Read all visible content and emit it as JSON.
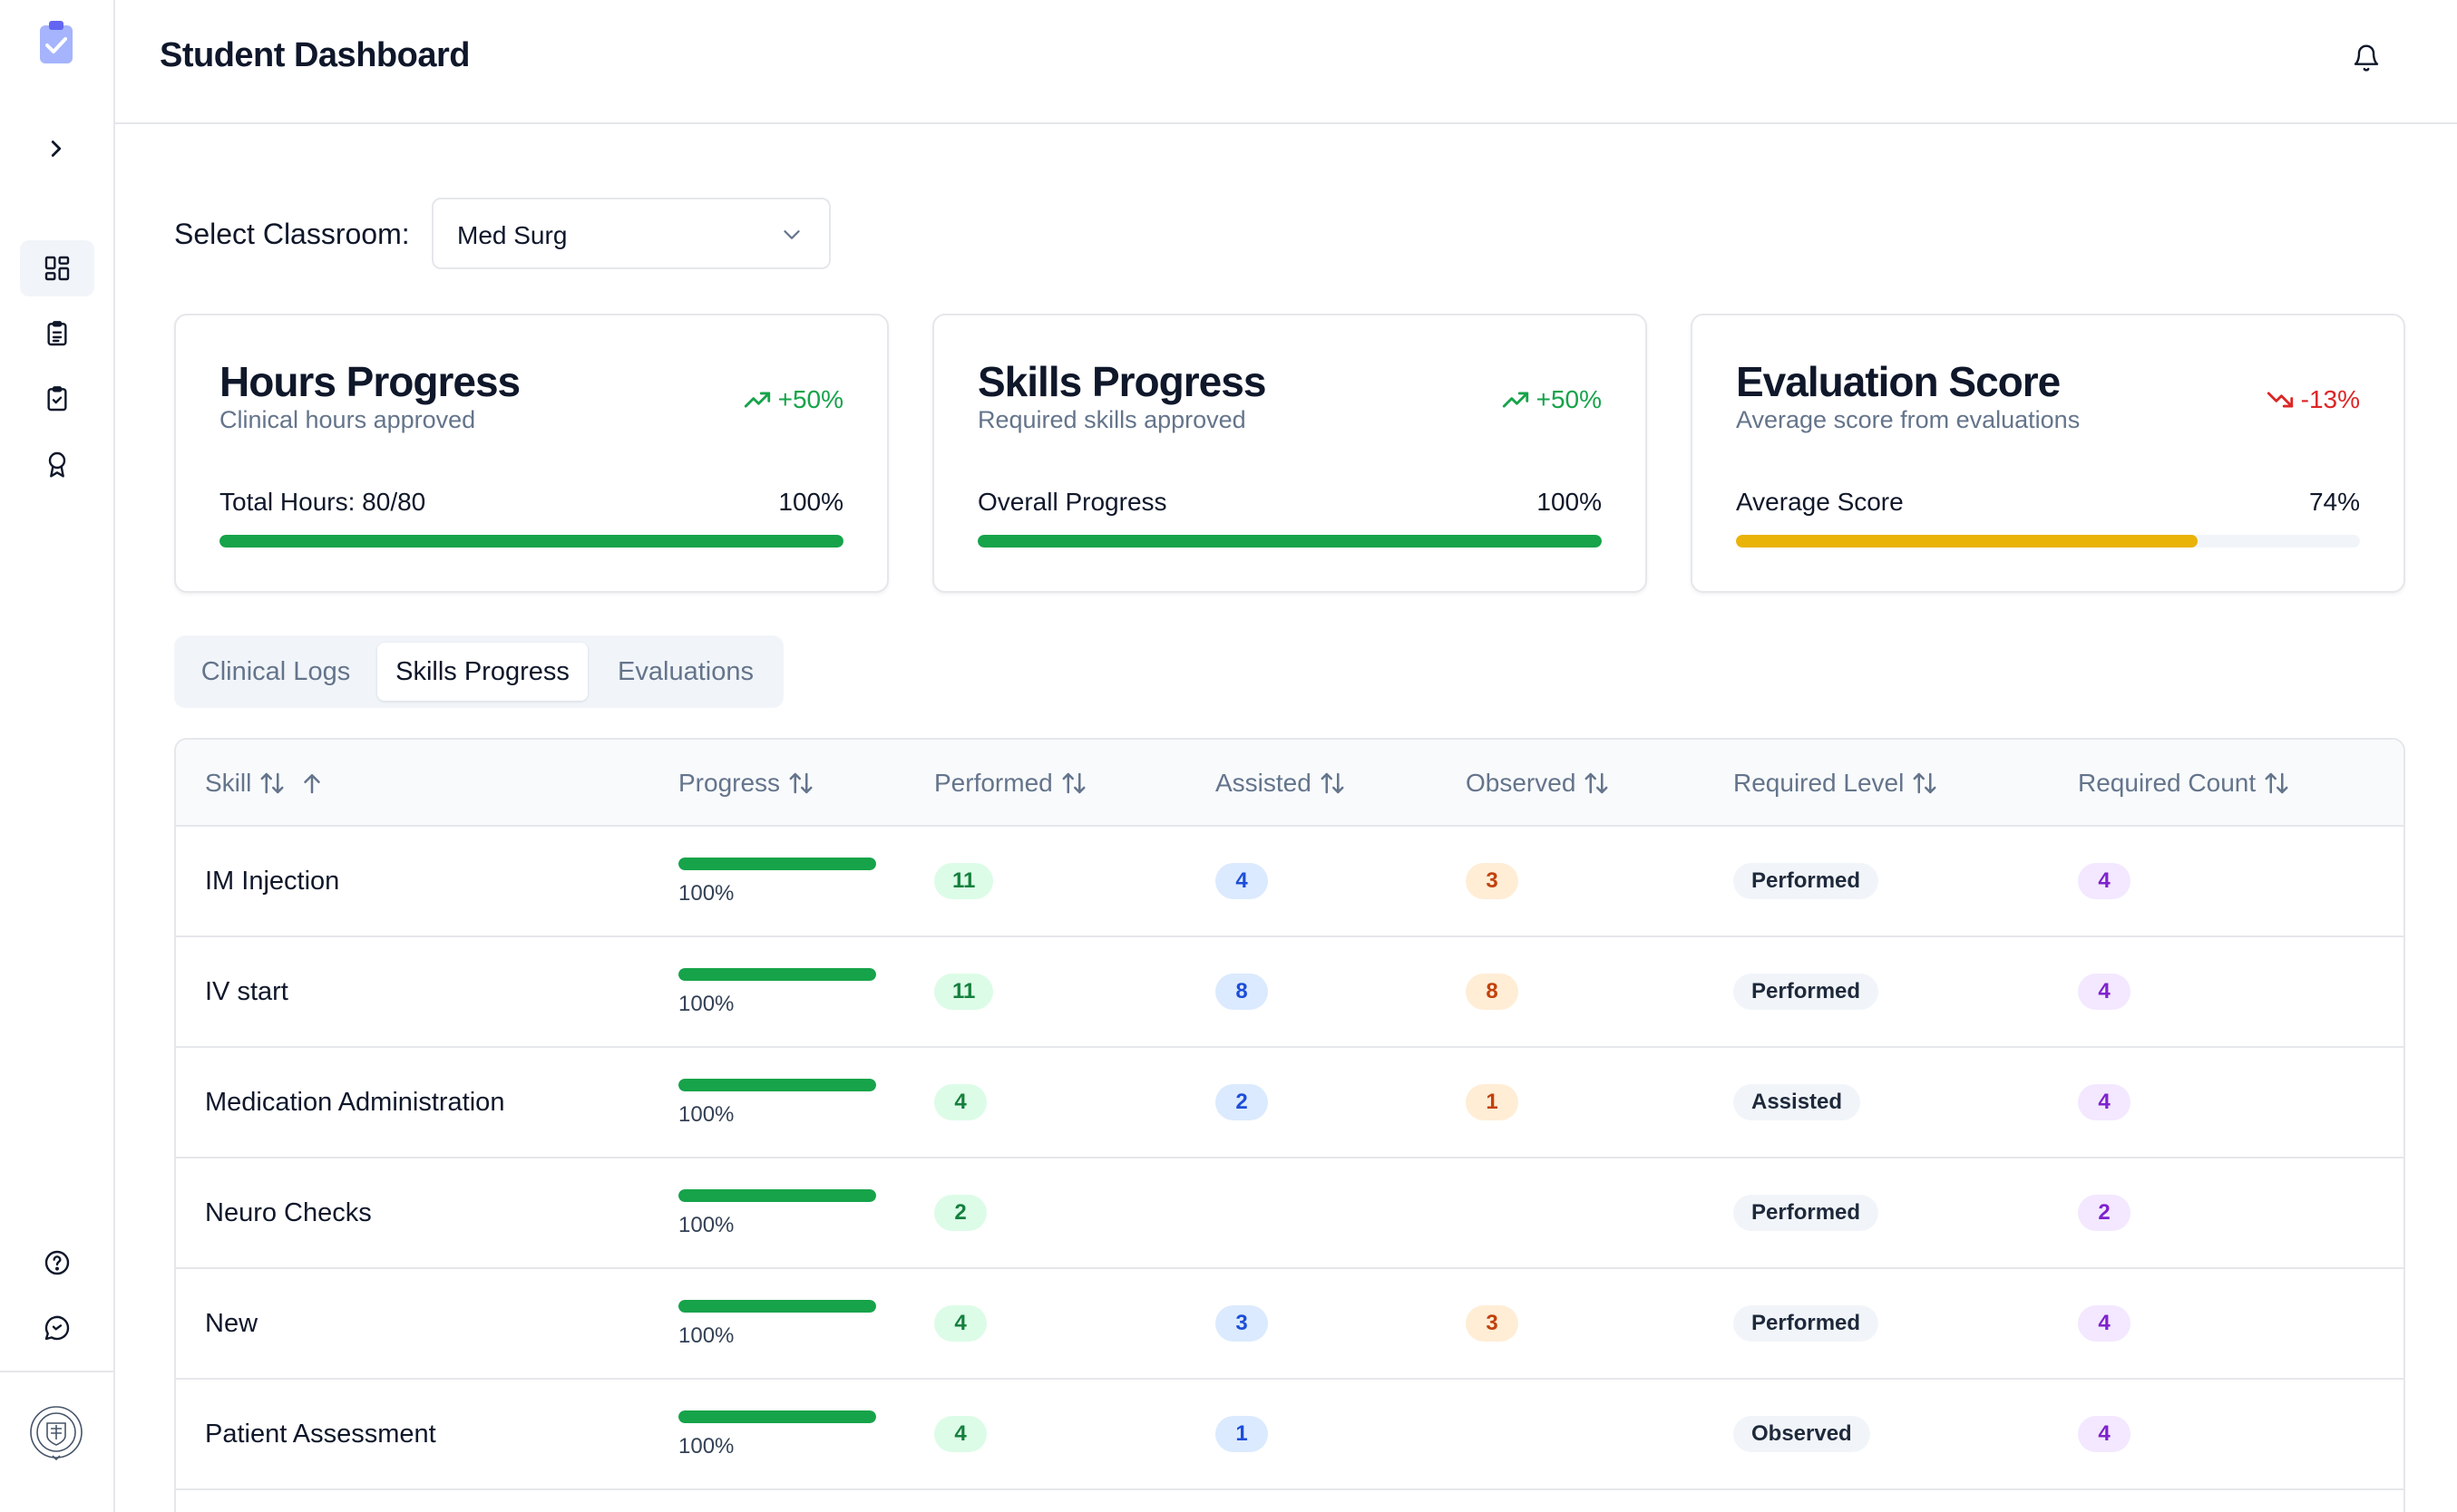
{
  "sidebar": {
    "toggle_icon": "chevron-right-icon",
    "items": [
      {
        "icon": "dashboard-icon",
        "active": true
      },
      {
        "icon": "clipboard-list-icon",
        "active": false
      },
      {
        "icon": "clipboard-check-icon",
        "active": false
      },
      {
        "icon": "award-icon",
        "active": false
      }
    ],
    "bottom_items": [
      {
        "icon": "help-circle-icon"
      },
      {
        "icon": "message-circle-icon"
      }
    ]
  },
  "header": {
    "title": "Student Dashboard"
  },
  "classroom": {
    "label": "Select Classroom:",
    "value": "Med Surg"
  },
  "cards": [
    {
      "title": "Hours Progress",
      "subtitle": "Clinical hours approved",
      "trend": "+50%",
      "trend_dir": "up",
      "metric_label": "Total Hours: 80/80",
      "percent_label": "100%",
      "progress": 1.0,
      "bar_color": "#16a34a"
    },
    {
      "title": "Skills Progress",
      "subtitle": "Required skills approved",
      "trend": "+50%",
      "trend_dir": "up",
      "metric_label": "Overall Progress",
      "percent_label": "100%",
      "progress": 1.0,
      "bar_color": "#16a34a"
    },
    {
      "title": "Evaluation Score",
      "subtitle": "Average score from evaluations",
      "trend": "-13%",
      "trend_dir": "down",
      "metric_label": "Average Score",
      "percent_label": "74%",
      "progress": 0.74,
      "bar_color": "#eab308"
    }
  ],
  "tabs": [
    {
      "label": "Clinical Logs",
      "active": false
    },
    {
      "label": "Skills Progress",
      "active": true
    },
    {
      "label": "Evaluations",
      "active": false
    }
  ],
  "table": {
    "columns": [
      "Skill",
      "Progress",
      "Performed",
      "Assisted",
      "Observed",
      "Required Level",
      "Required Count"
    ],
    "sort_column": "Skill",
    "sort_direction": "ascending",
    "rows": [
      {
        "skill": "IM Injection",
        "progress": 1.0,
        "progress_label": "100%",
        "performed": "11",
        "assisted": "4",
        "observed": "3",
        "required_level": "Performed",
        "required_count": "4"
      },
      {
        "skill": "IV start",
        "progress": 1.0,
        "progress_label": "100%",
        "performed": "11",
        "assisted": "8",
        "observed": "8",
        "required_level": "Performed",
        "required_count": "4"
      },
      {
        "skill": "Medication Administration",
        "progress": 1.0,
        "progress_label": "100%",
        "performed": "4",
        "assisted": "2",
        "observed": "1",
        "required_level": "Assisted",
        "required_count": "4"
      },
      {
        "skill": "Neuro Checks",
        "progress": 1.0,
        "progress_label": "100%",
        "performed": "2",
        "assisted": "",
        "observed": "",
        "required_level": "Performed",
        "required_count": "2"
      },
      {
        "skill": "New",
        "progress": 1.0,
        "progress_label": "100%",
        "performed": "4",
        "assisted": "3",
        "observed": "3",
        "required_level": "Performed",
        "required_count": "4"
      },
      {
        "skill": "Patient Assessment",
        "progress": 1.0,
        "progress_label": "100%",
        "performed": "4",
        "assisted": "1",
        "observed": "",
        "required_level": "Observed",
        "required_count": "4"
      }
    ]
  },
  "colors": {
    "primary_green": "#16a34a",
    "warning_amber": "#eab308",
    "trend_down": "#dc2626",
    "logo_blue": "#818cf8"
  }
}
